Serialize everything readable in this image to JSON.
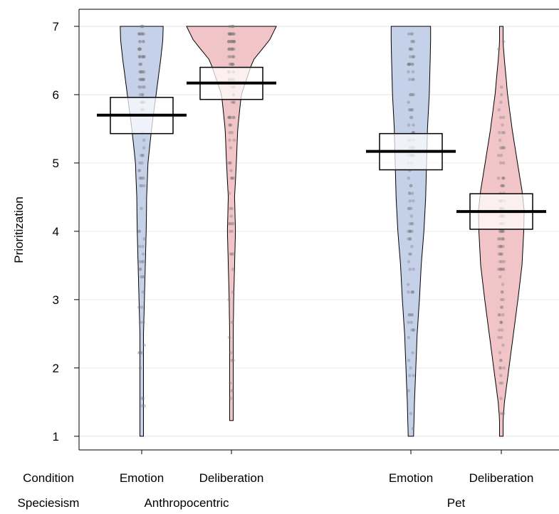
{
  "chart_data": {
    "type": "pirate",
    "ylabel": "Prioritization",
    "ylim": [
      0.8,
      7.25
    ],
    "yticks": [
      1,
      2,
      3,
      4,
      5,
      6,
      7
    ],
    "grid": true,
    "row_labels": [
      "Condition",
      "Speciesism"
    ],
    "speciesism_groups": [
      {
        "label": "Anthropocentric",
        "categories": [
          0,
          1
        ]
      },
      {
        "label": "Pet",
        "categories": [
          2,
          3
        ]
      }
    ],
    "categories": [
      "Emotion",
      "Deliberation",
      "Emotion",
      "Deliberation"
    ],
    "series": [
      {
        "condition": "Emotion",
        "speciesism": "Anthropocentric",
        "color": "#c5d1e8",
        "mean": 5.7,
        "ci": [
          5.43,
          5.96
        ],
        "density": [
          [
            1.0,
            0.02
          ],
          [
            2.0,
            0.03
          ],
          [
            2.5,
            0.04
          ],
          [
            3.0,
            0.06
          ],
          [
            3.5,
            0.08
          ],
          [
            4.0,
            0.1
          ],
          [
            4.5,
            0.11
          ],
          [
            5.0,
            0.14
          ],
          [
            5.5,
            0.22
          ],
          [
            6.0,
            0.32
          ],
          [
            6.5,
            0.42
          ],
          [
            6.8,
            0.47
          ],
          [
            7.0,
            0.48
          ]
        ]
      },
      {
        "condition": "Deliberation",
        "speciesism": "Anthropocentric",
        "color": "#f1c5c8",
        "mean": 6.17,
        "ci": [
          5.93,
          6.4
        ],
        "density": [
          [
            1.23,
            0.01
          ],
          [
            1.5,
            0.02
          ],
          [
            2.0,
            0.03
          ],
          [
            2.5,
            0.04
          ],
          [
            3.0,
            0.05
          ],
          [
            3.5,
            0.07
          ],
          [
            4.0,
            0.09
          ],
          [
            4.5,
            0.07
          ],
          [
            5.0,
            0.11
          ],
          [
            5.5,
            0.14
          ],
          [
            6.0,
            0.22
          ],
          [
            6.5,
            0.48
          ],
          [
            6.8,
            0.85
          ],
          [
            7.0,
            1.0
          ]
        ]
      },
      {
        "condition": "Emotion",
        "speciesism": "Pet",
        "color": "#c5d1e8",
        "mean": 5.17,
        "ci": [
          4.9,
          5.43
        ],
        "density": [
          [
            1.0,
            0.06
          ],
          [
            1.5,
            0.08
          ],
          [
            2.0,
            0.11
          ],
          [
            2.5,
            0.14
          ],
          [
            3.0,
            0.19
          ],
          [
            3.5,
            0.23
          ],
          [
            4.0,
            0.29
          ],
          [
            4.5,
            0.33
          ],
          [
            5.0,
            0.35
          ],
          [
            5.5,
            0.37
          ],
          [
            6.0,
            0.41
          ],
          [
            6.5,
            0.43
          ],
          [
            6.8,
            0.44
          ],
          [
            7.0,
            0.44
          ]
        ]
      },
      {
        "condition": "Deliberation",
        "speciesism": "Pet",
        "color": "#f1c5c8",
        "mean": 4.29,
        "ci": [
          4.03,
          4.55
        ],
        "density": [
          [
            1.0,
            0.01
          ],
          [
            1.5,
            0.07
          ],
          [
            2.0,
            0.17
          ],
          [
            2.5,
            0.27
          ],
          [
            3.0,
            0.37
          ],
          [
            3.5,
            0.46
          ],
          [
            4.0,
            0.5
          ],
          [
            4.3,
            0.51
          ],
          [
            4.6,
            0.46
          ],
          [
            5.0,
            0.36
          ],
          [
            5.5,
            0.24
          ],
          [
            6.0,
            0.14
          ],
          [
            6.5,
            0.07
          ],
          [
            7.0,
            0.01
          ]
        ]
      }
    ]
  }
}
